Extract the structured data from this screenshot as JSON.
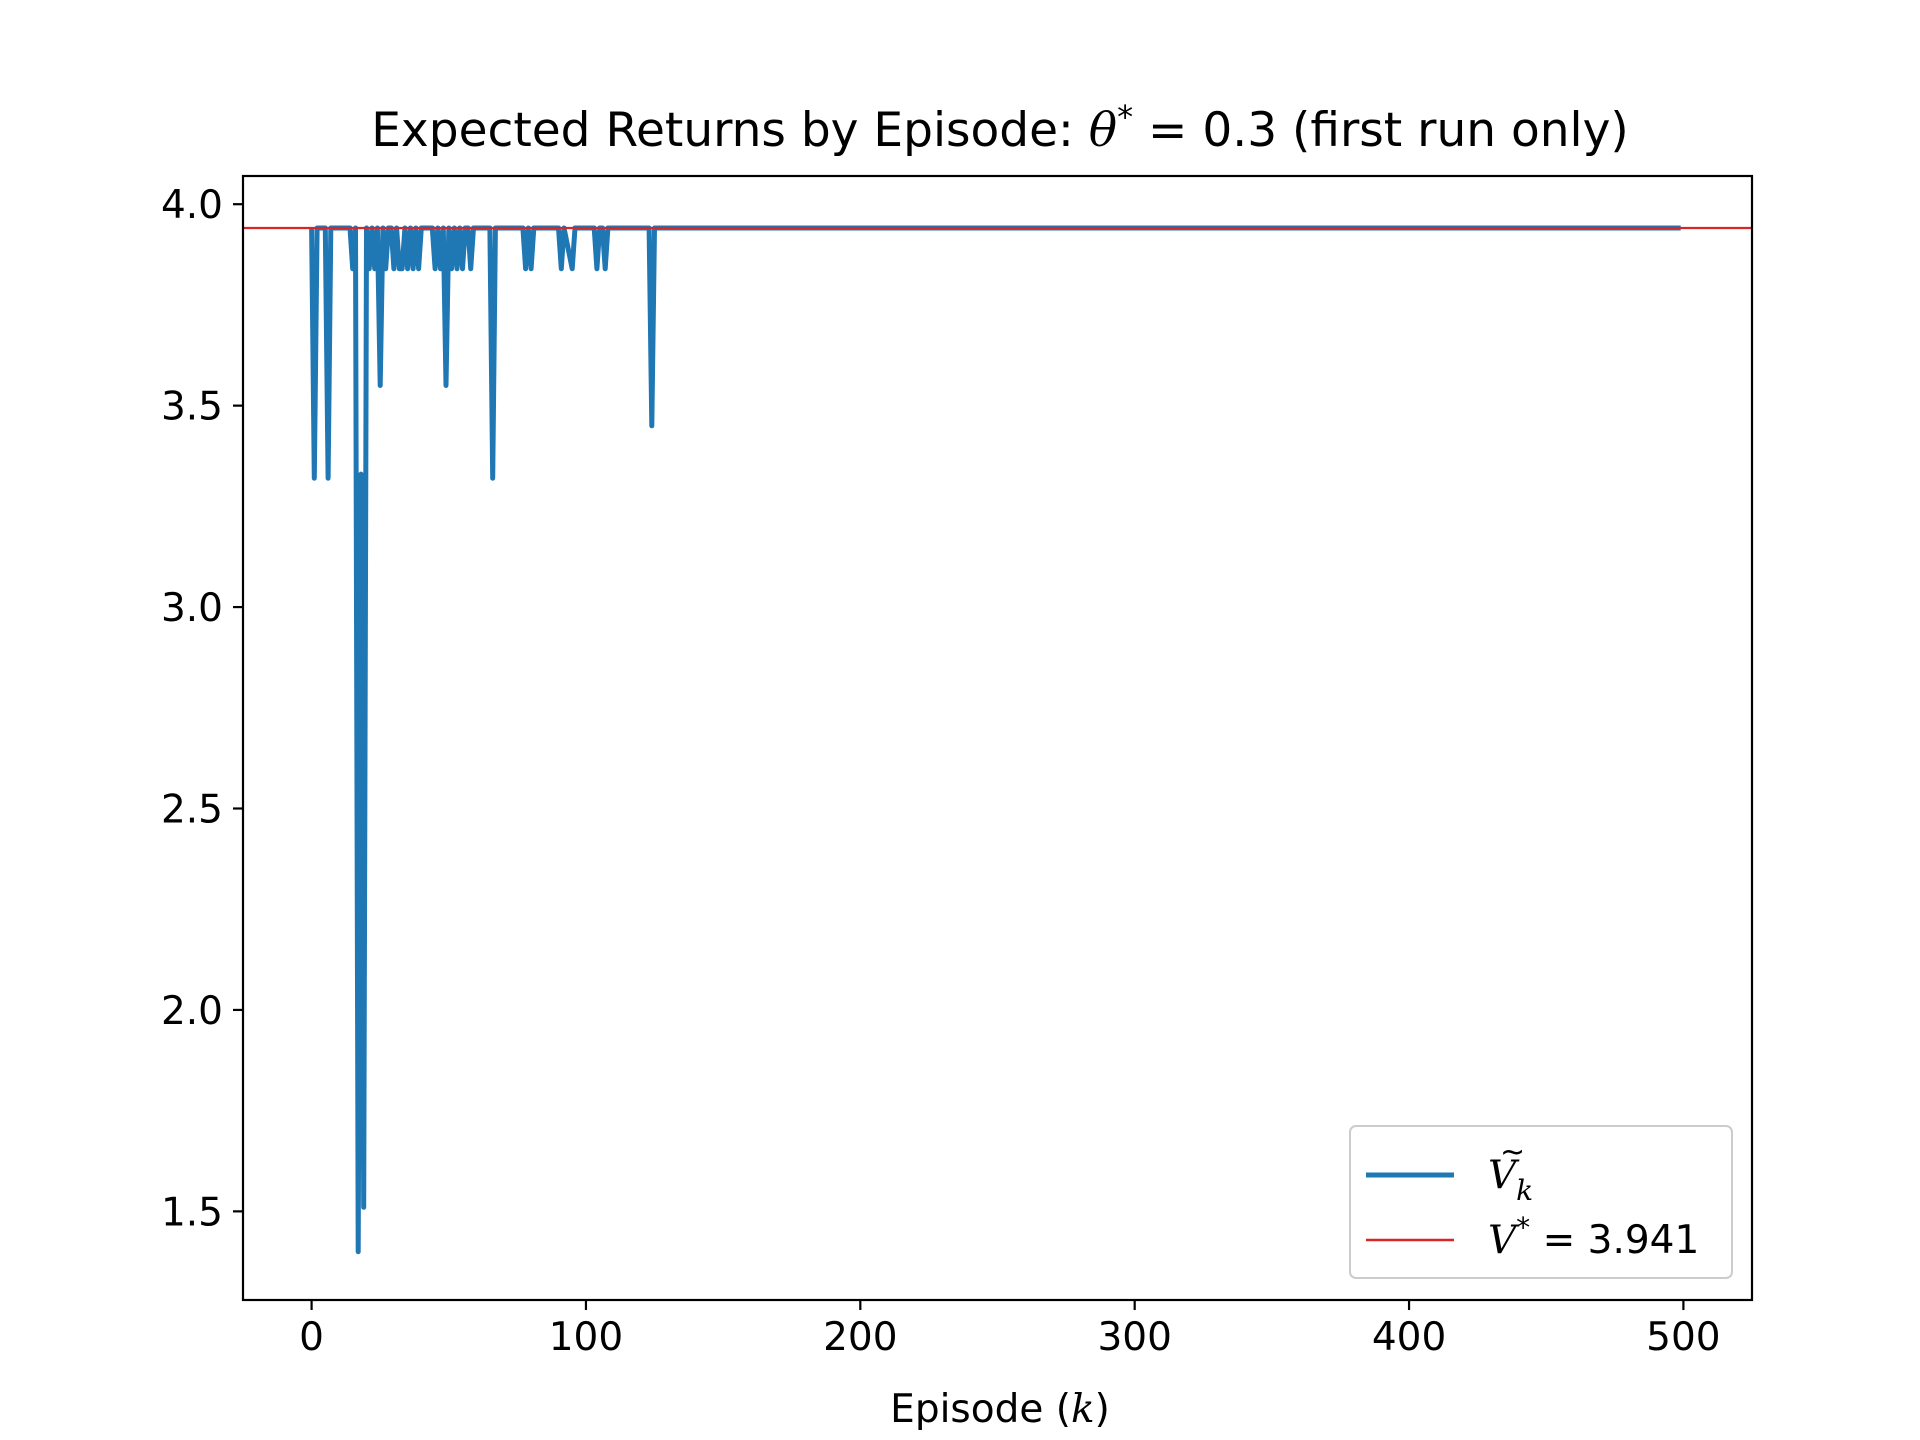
{
  "chart_data": {
    "type": "line",
    "title": "Expected Returns by Episode: θ* = 0.3 (first run only)",
    "title_parts": {
      "prefix": "Expected Returns by Episode: ",
      "symbol": "θ",
      "sup": "*",
      "suffix": " = 0.3 (first run only)"
    },
    "xlabel": "Episode (k)",
    "xlabel_parts": {
      "prefix": "Episode (",
      "var": "k",
      "suffix": ")"
    },
    "ylabel": "",
    "xlim": [
      -25,
      525
    ],
    "ylim": [
      1.28,
      4.07
    ],
    "xticks": [
      0,
      100,
      200,
      300,
      400,
      500
    ],
    "yticks": [
      1.5,
      2.0,
      2.5,
      3.0,
      3.5,
      4.0
    ],
    "xtick_labels": [
      "0",
      "100",
      "200",
      "300",
      "400",
      "500"
    ],
    "ytick_labels": [
      "1.5",
      "2.0",
      "2.5",
      "3.0",
      "3.5",
      "4.0"
    ],
    "grid": false,
    "legend_position": "lower-right",
    "series": [
      {
        "name": "Ṽk",
        "legend_symbol": "V",
        "legend_sub": "k",
        "color": "#1f77b4",
        "x": [
          0,
          1,
          2,
          3,
          4,
          5,
          6,
          7,
          8,
          9,
          10,
          11,
          12,
          13,
          14,
          15,
          16,
          17,
          18,
          19,
          20,
          21,
          22,
          23,
          24,
          25,
          26,
          27,
          28,
          29,
          30,
          31,
          32,
          33,
          34,
          35,
          36,
          37,
          38,
          39,
          40,
          41,
          42,
          43,
          44,
          45,
          46,
          47,
          48,
          49,
          50,
          51,
          52,
          53,
          54,
          55,
          56,
          57,
          58,
          59,
          60,
          61,
          62,
          63,
          64,
          65,
          66,
          67,
          68,
          69,
          70,
          75,
          76,
          77,
          78,
          79,
          80,
          81,
          82,
          85,
          86,
          87,
          88,
          89,
          90,
          91,
          92,
          95,
          96,
          97,
          98,
          99,
          100,
          101,
          102,
          103,
          104,
          105,
          106,
          107,
          108,
          110,
          122,
          123,
          124,
          125,
          130,
          200,
          300,
          400,
          499
        ],
        "y": [
          3.941,
          3.32,
          3.941,
          3.941,
          3.941,
          3.941,
          3.32,
          3.941,
          3.941,
          3.941,
          3.941,
          3.941,
          3.941,
          3.941,
          3.941,
          3.84,
          3.941,
          1.4,
          3.33,
          1.51,
          3.941,
          3.84,
          3.941,
          3.84,
          3.941,
          3.55,
          3.941,
          3.84,
          3.941,
          3.941,
          3.84,
          3.941,
          3.84,
          3.84,
          3.941,
          3.84,
          3.941,
          3.84,
          3.941,
          3.84,
          3.941,
          3.941,
          3.941,
          3.941,
          3.941,
          3.84,
          3.941,
          3.84,
          3.941,
          3.55,
          3.941,
          3.84,
          3.941,
          3.84,
          3.941,
          3.84,
          3.941,
          3.941,
          3.84,
          3.941,
          3.941,
          3.941,
          3.941,
          3.941,
          3.941,
          3.941,
          3.32,
          3.941,
          3.941,
          3.941,
          3.941,
          3.941,
          3.941,
          3.941,
          3.84,
          3.941,
          3.84,
          3.941,
          3.941,
          3.941,
          3.941,
          3.941,
          3.941,
          3.941,
          3.941,
          3.84,
          3.941,
          3.84,
          3.941,
          3.941,
          3.941,
          3.941,
          3.941,
          3.941,
          3.941,
          3.941,
          3.84,
          3.941,
          3.941,
          3.84,
          3.941,
          3.941,
          3.941,
          3.941,
          3.45,
          3.941,
          3.941,
          3.941,
          3.941,
          3.941,
          3.941
        ]
      },
      {
        "name": "V* = 3.941",
        "legend_symbol": "V",
        "legend_sup": "*",
        "legend_value": " = 3.941",
        "color": "#d62728",
        "hline": 3.941
      }
    ]
  }
}
